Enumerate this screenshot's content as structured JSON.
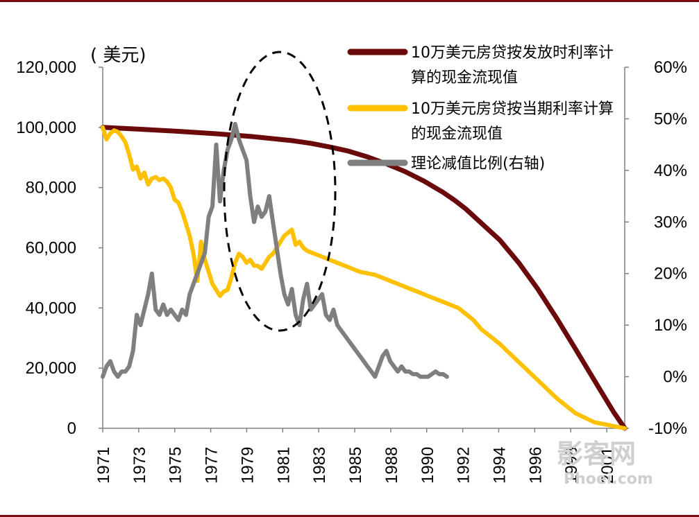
{
  "chart_data": {
    "type": "line",
    "title": "",
    "unit_label": "( 美元)",
    "xlabel": "",
    "x_tick_labels": [
      "1971",
      "1973",
      "1975",
      "1977",
      "1979",
      "1981",
      "1983",
      "1985",
      "1988",
      "1990",
      "1992",
      "1994",
      "1996",
      "1998",
      "2001"
    ],
    "y_left": {
      "range": [
        0,
        120000
      ],
      "ticks": [
        "0",
        "20,000",
        "40,000",
        "60,000",
        "80,000",
        "100,000",
        "120,000"
      ]
    },
    "y_right": {
      "range": [
        -10,
        60
      ],
      "ticks": [
        "-10%",
        "0%",
        "10%",
        "20%",
        "30%",
        "40%",
        "50%",
        "60%"
      ]
    },
    "legend_position": "top-right",
    "series": [
      {
        "name": "10万美元房贷按发放时利率计算的现金流现值",
        "axis": "left",
        "color": "#6b0a0a",
        "points": [
          [
            0,
            100000
          ],
          [
            0.1,
            99380
          ],
          [
            0.2,
            98700
          ],
          [
            0.3,
            97900
          ],
          [
            0.4,
            96900
          ],
          [
            0.5,
            95600
          ],
          [
            0.55,
            94700
          ],
          [
            0.6,
            93500
          ],
          [
            0.65,
            92100
          ],
          [
            0.7,
            90200
          ],
          [
            0.75,
            87900
          ],
          [
            0.8,
            85300
          ],
          [
            0.85,
            82100
          ],
          [
            0.9,
            78400
          ],
          [
            0.93,
            75800
          ],
          [
            0.96,
            72900
          ],
          [
            1.0,
            68300
          ],
          [
            1.05,
            62500
          ],
          [
            1.1,
            55000
          ],
          [
            1.15,
            46300
          ],
          [
            1.2,
            36600
          ],
          [
            1.25,
            26300
          ],
          [
            1.3,
            15900
          ],
          [
            1.35,
            5500
          ],
          [
            1.38,
            0
          ]
        ]
      },
      {
        "name": "10万美元房贷按当期利率计算的现金流现值",
        "axis": "left",
        "color": "#ffc000",
        "points": [
          [
            0,
            100000
          ],
          [
            0.01,
            96000
          ],
          [
            0.02,
            98000
          ],
          [
            0.03,
            99000
          ],
          [
            0.04,
            98500
          ],
          [
            0.05,
            97000
          ],
          [
            0.06,
            95000
          ],
          [
            0.07,
            91000
          ],
          [
            0.08,
            86000
          ],
          [
            0.09,
            87000
          ],
          [
            0.1,
            83000
          ],
          [
            0.11,
            85000
          ],
          [
            0.12,
            81000
          ],
          [
            0.13,
            83000
          ],
          [
            0.14,
            83500
          ],
          [
            0.15,
            82500
          ],
          [
            0.16,
            83000
          ],
          [
            0.17,
            82000
          ],
          [
            0.18,
            80000
          ],
          [
            0.19,
            76000
          ],
          [
            0.2,
            75000
          ],
          [
            0.21,
            72000
          ],
          [
            0.22,
            68000
          ],
          [
            0.23,
            64000
          ],
          [
            0.24,
            58000
          ],
          [
            0.25,
            49000
          ],
          [
            0.26,
            62000
          ],
          [
            0.27,
            56000
          ],
          [
            0.28,
            52000
          ],
          [
            0.29,
            48000
          ],
          [
            0.3,
            46000
          ],
          [
            0.31,
            44000
          ],
          [
            0.32,
            45500
          ],
          [
            0.33,
            46000
          ],
          [
            0.34,
            50000
          ],
          [
            0.35,
            55000
          ],
          [
            0.36,
            58000
          ],
          [
            0.37,
            57000
          ],
          [
            0.38,
            55000
          ],
          [
            0.39,
            56000
          ],
          [
            0.4,
            54000
          ],
          [
            0.41,
            54000
          ],
          [
            0.42,
            53000
          ],
          [
            0.43,
            55000
          ],
          [
            0.44,
            57000
          ],
          [
            0.45,
            58000
          ],
          [
            0.46,
            60000
          ],
          [
            0.47,
            62000
          ],
          [
            0.48,
            64000
          ],
          [
            0.49,
            65000
          ],
          [
            0.5,
            66000
          ],
          [
            0.51,
            61000
          ],
          [
            0.52,
            62000
          ],
          [
            0.53,
            60000
          ],
          [
            0.54,
            59000
          ],
          [
            0.56,
            58000
          ],
          [
            0.58,
            57000
          ],
          [
            0.6,
            56000
          ],
          [
            0.62,
            55000
          ],
          [
            0.64,
            54000
          ],
          [
            0.66,
            53000
          ],
          [
            0.68,
            52000
          ],
          [
            0.7,
            51500
          ],
          [
            0.72,
            51000
          ],
          [
            0.74,
            50000
          ],
          [
            0.76,
            49000
          ],
          [
            0.78,
            48000
          ],
          [
            0.8,
            47000
          ],
          [
            0.82,
            46000
          ],
          [
            0.84,
            45000
          ],
          [
            0.86,
            44000
          ],
          [
            0.88,
            43000
          ],
          [
            0.9,
            42000
          ],
          [
            0.92,
            41000
          ],
          [
            0.94,
            40000
          ],
          [
            0.96,
            38000
          ],
          [
            0.98,
            36000
          ],
          [
            1.0,
            33000
          ],
          [
            1.05,
            28000
          ],
          [
            1.1,
            22000
          ],
          [
            1.15,
            16000
          ],
          [
            1.2,
            10000
          ],
          [
            1.25,
            5000
          ],
          [
            1.3,
            2000
          ],
          [
            1.38,
            0
          ]
        ]
      },
      {
        "name": "理论减值比例(右轴)",
        "axis": "right",
        "color": "#7f7f7f",
        "points": [
          [
            0,
            0
          ],
          [
            0.01,
            2
          ],
          [
            0.02,
            3
          ],
          [
            0.03,
            1
          ],
          [
            0.04,
            0
          ],
          [
            0.05,
            1
          ],
          [
            0.06,
            1
          ],
          [
            0.07,
            2
          ],
          [
            0.08,
            5
          ],
          [
            0.09,
            12
          ],
          [
            0.1,
            10
          ],
          [
            0.11,
            13
          ],
          [
            0.12,
            16
          ],
          [
            0.13,
            20
          ],
          [
            0.14,
            13
          ],
          [
            0.15,
            12
          ],
          [
            0.16,
            14
          ],
          [
            0.17,
            12
          ],
          [
            0.18,
            13
          ],
          [
            0.19,
            12
          ],
          [
            0.2,
            11
          ],
          [
            0.21,
            13
          ],
          [
            0.22,
            12
          ],
          [
            0.23,
            16
          ],
          [
            0.24,
            18
          ],
          [
            0.25,
            20
          ],
          [
            0.26,
            22
          ],
          [
            0.27,
            24
          ],
          [
            0.28,
            31
          ],
          [
            0.29,
            33
          ],
          [
            0.3,
            45
          ],
          [
            0.31,
            34
          ],
          [
            0.32,
            40
          ],
          [
            0.33,
            44
          ],
          [
            0.34,
            46
          ],
          [
            0.35,
            49
          ],
          [
            0.36,
            46
          ],
          [
            0.37,
            44
          ],
          [
            0.38,
            42
          ],
          [
            0.39,
            35
          ],
          [
            0.4,
            30
          ],
          [
            0.41,
            33
          ],
          [
            0.42,
            31
          ],
          [
            0.43,
            32
          ],
          [
            0.44,
            35
          ],
          [
            0.45,
            30
          ],
          [
            0.46,
            25
          ],
          [
            0.47,
            20
          ],
          [
            0.48,
            16
          ],
          [
            0.49,
            14
          ],
          [
            0.5,
            17
          ],
          [
            0.51,
            12
          ],
          [
            0.52,
            10
          ],
          [
            0.53,
            15
          ],
          [
            0.54,
            18
          ],
          [
            0.55,
            13
          ],
          [
            0.56,
            14
          ],
          [
            0.57,
            15
          ],
          [
            0.58,
            16
          ],
          [
            0.59,
            12
          ],
          [
            0.6,
            11
          ],
          [
            0.61,
            13
          ],
          [
            0.62,
            10
          ],
          [
            0.63,
            9
          ],
          [
            0.64,
            8
          ],
          [
            0.65,
            7
          ],
          [
            0.66,
            6
          ],
          [
            0.67,
            5
          ],
          [
            0.68,
            4
          ],
          [
            0.69,
            3
          ],
          [
            0.7,
            2
          ],
          [
            0.71,
            1
          ],
          [
            0.72,
            0
          ],
          [
            0.73,
            2
          ],
          [
            0.74,
            4
          ],
          [
            0.75,
            5
          ],
          [
            0.76,
            3
          ],
          [
            0.77,
            2
          ],
          [
            0.78,
            1
          ],
          [
            0.79,
            2
          ],
          [
            0.8,
            1
          ],
          [
            0.81,
            1
          ],
          [
            0.82,
            0.5
          ],
          [
            0.83,
            0.5
          ],
          [
            0.84,
            0
          ],
          [
            0.85,
            0
          ],
          [
            0.86,
            0
          ],
          [
            0.87,
            0.5
          ],
          [
            0.88,
            1
          ],
          [
            0.89,
            0.5
          ],
          [
            0.9,
            0.5
          ],
          [
            0.91,
            0
          ]
        ]
      }
    ],
    "annotation": {
      "type": "dashed-ellipse",
      "around_x_labels": [
        "1979",
        "1983"
      ]
    }
  },
  "watermark": {
    "text_main": "影客网",
    "text_sub": "Phoei.com"
  }
}
